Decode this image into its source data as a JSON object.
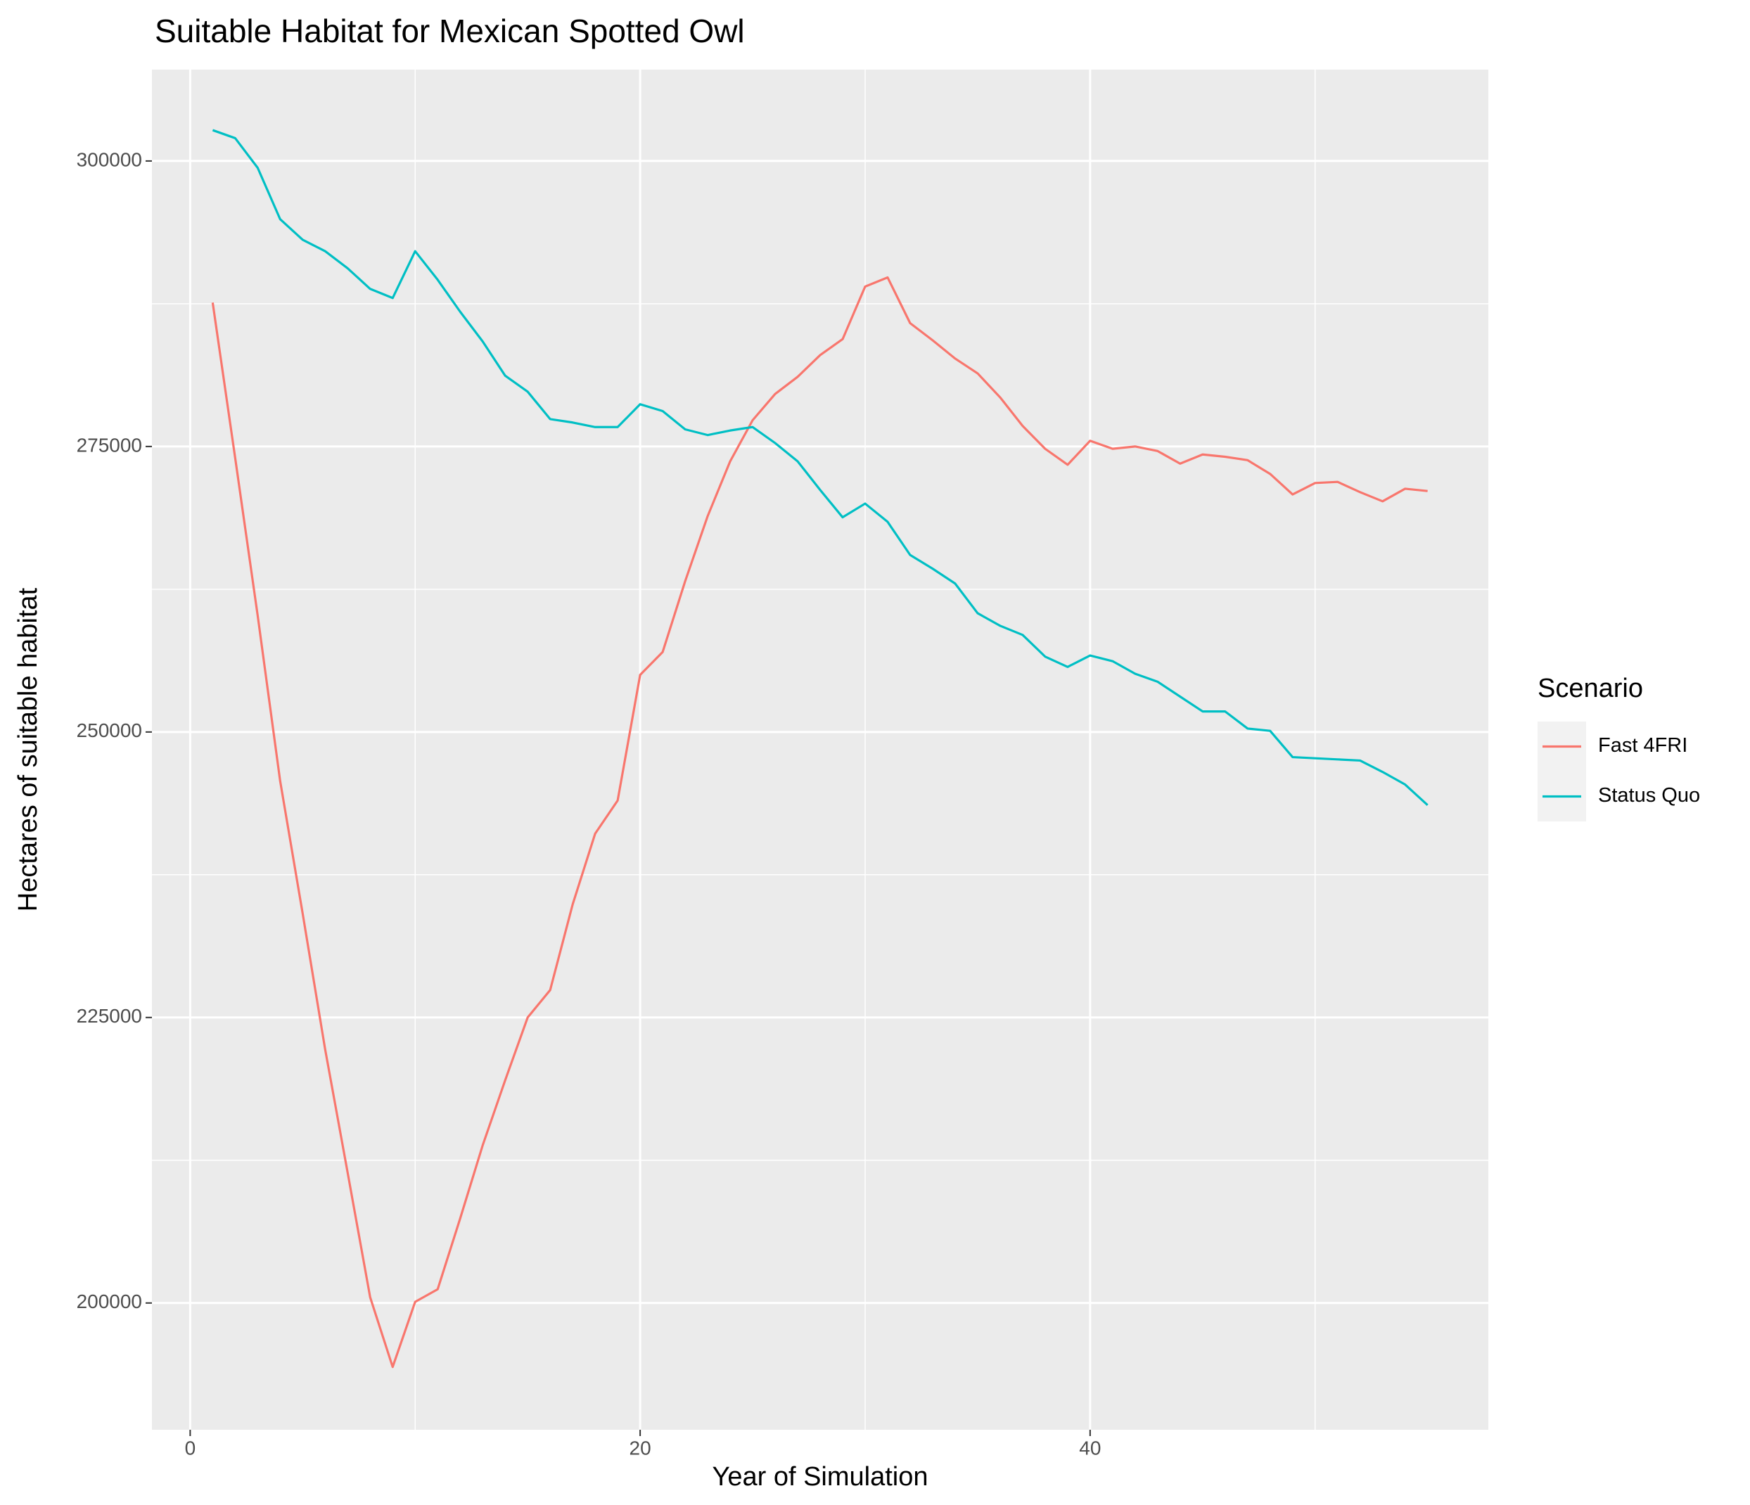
{
  "chart_data": {
    "type": "line",
    "title": "Suitable Habitat for Mexican Spotted Owl",
    "x_label": "Year of Simulation",
    "y_label": "Hectares of suitable habitat",
    "legend_title": "Scenario",
    "legend_position": "right",
    "grid": true,
    "background": "#ebebeb",
    "x": [
      1,
      2,
      3,
      4,
      5,
      6,
      7,
      8,
      9,
      10,
      11,
      12,
      13,
      14,
      15,
      16,
      17,
      18,
      19,
      20,
      21,
      22,
      23,
      24,
      25,
      26,
      27,
      28,
      29,
      30,
      31,
      32,
      33,
      34,
      35,
      36,
      37,
      38,
      39,
      40,
      41,
      42,
      43,
      44,
      45,
      46,
      47,
      48,
      49,
      50,
      51,
      52,
      53,
      54,
      55
    ],
    "series": [
      {
        "name": "Fast 4FRI",
        "color": "#f8766d",
        "values": [
          287600,
          274000,
          260200,
          245700,
          234100,
          222200,
          211400,
          200500,
          194400,
          200100,
          201200,
          207400,
          213800,
          219500,
          225000,
          227400,
          234900,
          241100,
          244000,
          255000,
          257000,
          263200,
          268900,
          273700,
          277300,
          279600,
          281100,
          283000,
          284400,
          289000,
          289800,
          285800,
          284300,
          282700,
          281400,
          279300,
          276800,
          274800,
          273400,
          275500,
          274800,
          275000,
          274600,
          273500,
          274300,
          274100,
          273800,
          272600,
          270800,
          271800,
          271900,
          271000,
          270200,
          271300,
          271100
        ]
      },
      {
        "name": "Status Quo",
        "color": "#00bfc4",
        "values": [
          302700,
          302000,
          299400,
          294900,
          293100,
          292100,
          290600,
          288800,
          288000,
          292100,
          289600,
          286800,
          284200,
          281200,
          279800,
          277400,
          277100,
          276700,
          276700,
          278700,
          278100,
          276500,
          276000,
          276400,
          276700,
          275300,
          273700,
          271200,
          268800,
          270000,
          268400,
          265500,
          264300,
          263000,
          260400,
          259300,
          258500,
          256600,
          255700,
          256700,
          256200,
          255100,
          254400,
          253100,
          251800,
          251800,
          250300,
          250100,
          247800,
          247700,
          247600,
          247500,
          246500,
          245400,
          243600
        ]
      }
    ],
    "xlim": [
      -1.7,
      57.7
    ],
    "ylim": [
      188900,
      308000
    ],
    "xticks": [
      0,
      20,
      40
    ],
    "yticks": [
      200000,
      225000,
      250000,
      275000,
      300000
    ],
    "x_minor_grid": [
      10,
      30,
      50
    ],
    "y_minor_grid": [
      212500,
      237500,
      262500,
      287500
    ]
  }
}
